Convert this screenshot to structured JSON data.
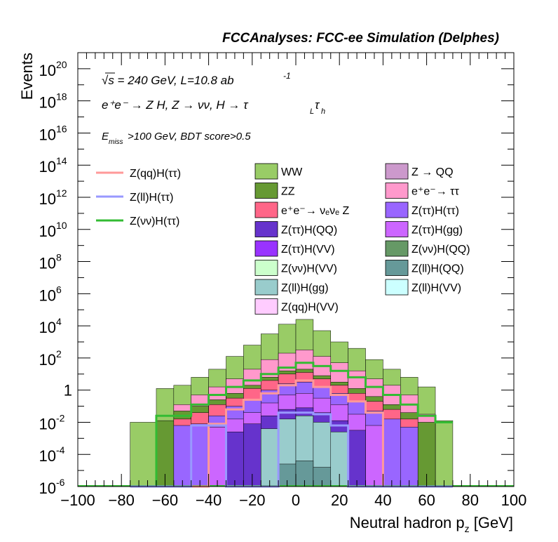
{
  "header": {
    "title": "FCCAnalyses: FCC-ee Simulation (Delphes)"
  },
  "annotations": {
    "energy_line": "√s = 240 GeV, L=10.8 ab",
    "energy_exp": "-1",
    "process": "e⁺e⁻ → Z H, Z → νν, H → τ",
    "process_sub_L": "L",
    "process_tau_h": "τ",
    "process_sub_h": "h",
    "cuts_prefix": "E",
    "cuts_sub": "miss",
    "cuts_rest": ">100 GeV, BDT score>0.5"
  },
  "legend": {
    "lines": [
      {
        "label": "Z(qq)H(ττ)",
        "color": "#ff9999"
      },
      {
        "label": "Z(ll)H(ττ)",
        "color": "#9999ff"
      },
      {
        "label": "Z(νν)H(ττ)",
        "color": "#33bb33"
      }
    ],
    "boxes_col1": [
      {
        "label": "WW",
        "color": "#99cc66"
      },
      {
        "label": "ZZ",
        "color": "#669933"
      },
      {
        "label": "e⁺e⁻→ νₑνₑ Z",
        "color": "#ff6688"
      },
      {
        "label": "Z(ττ)H(QQ)",
        "color": "#6633cc"
      },
      {
        "label": "Z(ττ)H(VV)",
        "color": "#9933ff"
      },
      {
        "label": "Z(νν)H(VV)",
        "color": "#ccffcc"
      },
      {
        "label": "Z(ll)H(gg)",
        "color": "#99cccc"
      },
      {
        "label": "Z(qq)H(VV)",
        "color": "#ffccff"
      }
    ],
    "boxes_col2": [
      {
        "label": "Z → QQ",
        "color": "#cc99cc"
      },
      {
        "label": "e⁺e⁻→ ττ",
        "color": "#ff99cc"
      },
      {
        "label": "Z(ττ)H(ττ)",
        "color": "#9966ff"
      },
      {
        "label": "Z(ττ)H(gg)",
        "color": "#cc66ff"
      },
      {
        "label": "Z(νν)H(QQ)",
        "color": "#669966"
      },
      {
        "label": "Z(ll)H(QQ)",
        "color": "#669999"
      },
      {
        "label": "Z(ll)H(VV)",
        "color": "#ccffff"
      }
    ]
  },
  "chart_data": {
    "type": "bar",
    "subtype": "stacked histogram with overlaid step lines",
    "xlabel": "Neutral hadron p_z [GeV]",
    "ylabel": "Events",
    "xlim": [
      -100,
      100
    ],
    "ylim_log10": [
      -6,
      21
    ],
    "yscale": "log",
    "x_ticks": [
      "−100",
      "−80",
      "−60",
      "−40",
      "−20",
      "0",
      "20",
      "40",
      "60",
      "80",
      "100"
    ],
    "y_ticks": [
      {
        "base": "10",
        "exp": "20"
      },
      {
        "base": "10",
        "exp": "18"
      },
      {
        "base": "10",
        "exp": "16"
      },
      {
        "base": "10",
        "exp": "14"
      },
      {
        "base": "10",
        "exp": "12"
      },
      {
        "base": "10",
        "exp": "10"
      },
      {
        "base": "10",
        "exp": "8"
      },
      {
        "base": "10",
        "exp": "6"
      },
      {
        "base": "10",
        "exp": "4"
      },
      {
        "base": "10",
        "exp": "2"
      },
      {
        "base": "1",
        "exp": ""
      },
      {
        "base": "10",
        "exp": "-2"
      },
      {
        "base": "10",
        "exp": "-4"
      },
      {
        "base": "10",
        "exp": "-6"
      }
    ],
    "bin_edges": [
      -76,
      -64,
      -56,
      -48,
      -40,
      -32,
      -24,
      -16,
      -8,
      0,
      8,
      16,
      24,
      32,
      40,
      48,
      56,
      64,
      72
    ],
    "stacked_log10_tops": [
      {
        "name": "WW",
        "color": "#99cc66",
        "values": [
          -2.0,
          0.1,
          0.3,
          0.8,
          1.3,
          2.1,
          2.8,
          3.5,
          4.1,
          4.4,
          3.7,
          3.0,
          2.6,
          1.9,
          1.3,
          0.8,
          0.2,
          -1.9
        ]
      },
      {
        "name": "e⁺e⁻→ ττ",
        "color": "#ff99cc",
        "values": [
          -6,
          -2.0,
          -0.9,
          -0.3,
          0.2,
          0.7,
          1.3,
          1.9,
          2.3,
          2.5,
          2.1,
          1.7,
          1.2,
          0.7,
          0.3,
          -0.3,
          -1.5,
          -6
        ]
      },
      {
        "name": "ZZ",
        "color": "#669933",
        "values": [
          -6,
          -1.9,
          -1.3,
          -1.0,
          -0.6,
          -0.2,
          0.3,
          0.8,
          1.2,
          1.3,
          0.9,
          0.5,
          0.1,
          -0.4,
          -0.9,
          -1.4,
          -2.0,
          -6
        ]
      },
      {
        "name": "e⁺e⁻→ νₑνₑ Z",
        "color": "#ff6688",
        "values": [
          -6,
          -6,
          -1.8,
          -1.4,
          -0.9,
          -0.5,
          0.1,
          0.6,
          1.0,
          1.1,
          0.7,
          0.3,
          -0.2,
          -0.7,
          -1.2,
          -1.8,
          -6,
          -6
        ]
      },
      {
        "name": "Z(ττ)H(ττ)",
        "color": "#9966ff",
        "values": [
          -6,
          -6,
          -2.2,
          -2.1,
          -1.6,
          -1.0,
          -0.6,
          0.0,
          0.4,
          0.5,
          0.2,
          -0.2,
          -0.7,
          -1.3,
          -1.8,
          -2.3,
          -6,
          -6
        ]
      },
      {
        "name": "Z(ττ)H(gg)",
        "color": "#cc66ff",
        "values": [
          -6,
          -6,
          -6,
          -6,
          -2.3,
          -1.8,
          -1.4,
          -0.8,
          -0.3,
          -0.2,
          -0.5,
          -0.9,
          -1.5,
          -2.2,
          -6,
          -6,
          -6,
          -6
        ]
      },
      {
        "name": "Z(ττ)H(QQ)",
        "color": "#6633cc",
        "values": [
          -6,
          -6,
          -6,
          -6,
          -6,
          -2.6,
          -2.1,
          -1.6,
          -1.2,
          -1.1,
          -1.4,
          -1.9,
          -2.5,
          -6,
          -6,
          -6,
          -6,
          -6
        ]
      },
      {
        "name": "Z(ll)H(gg)",
        "color": "#99cccc",
        "values": [
          -6,
          -6,
          -6,
          -6,
          -6,
          -6,
          -6,
          -2.4,
          -1.8,
          -1.6,
          -2.0,
          -2.6,
          -6,
          -6,
          -6,
          -6,
          -6,
          -6
        ]
      },
      {
        "name": "Z(ll)H(QQ)",
        "color": "#669999",
        "values": [
          -6,
          -6,
          -6,
          -6,
          -6,
          -6,
          -6,
          -6,
          -4.6,
          -4.4,
          -4.8,
          -6,
          -6,
          -6,
          -6,
          -6,
          -6,
          -6
        ]
      }
    ],
    "line_series_log10": [
      {
        "name": "Z(νν)H(ττ)",
        "color": "#33bb33",
        "values": [
          -6,
          -1.6,
          -1.6,
          -0.9,
          -0.3,
          0.2,
          0.6,
          1.0,
          1.4,
          1.7,
          1.5,
          1.2,
          0.8,
          0.2,
          -0.3,
          -0.9,
          -1.6,
          -2.0
        ]
      },
      {
        "name": "Z(qq)H(ττ)",
        "color": "#ff9999",
        "values": [
          -6,
          -6,
          -6,
          -6,
          -2.1,
          -1.2,
          -0.6,
          -0.2,
          0.3,
          0.6,
          0.2,
          -0.3,
          -0.7,
          -1.4,
          -6,
          -6,
          -6,
          -6
        ]
      },
      {
        "name": "Z(ll)H(ττ)",
        "color": "#9999ff",
        "values": [
          -6,
          -6,
          -6,
          -2.2,
          -2.2,
          -6,
          -6,
          -6,
          -1.4,
          -1.4,
          -1.5,
          -2.2,
          -6,
          -6,
          -6,
          -6,
          -6,
          -6
        ]
      }
    ]
  }
}
